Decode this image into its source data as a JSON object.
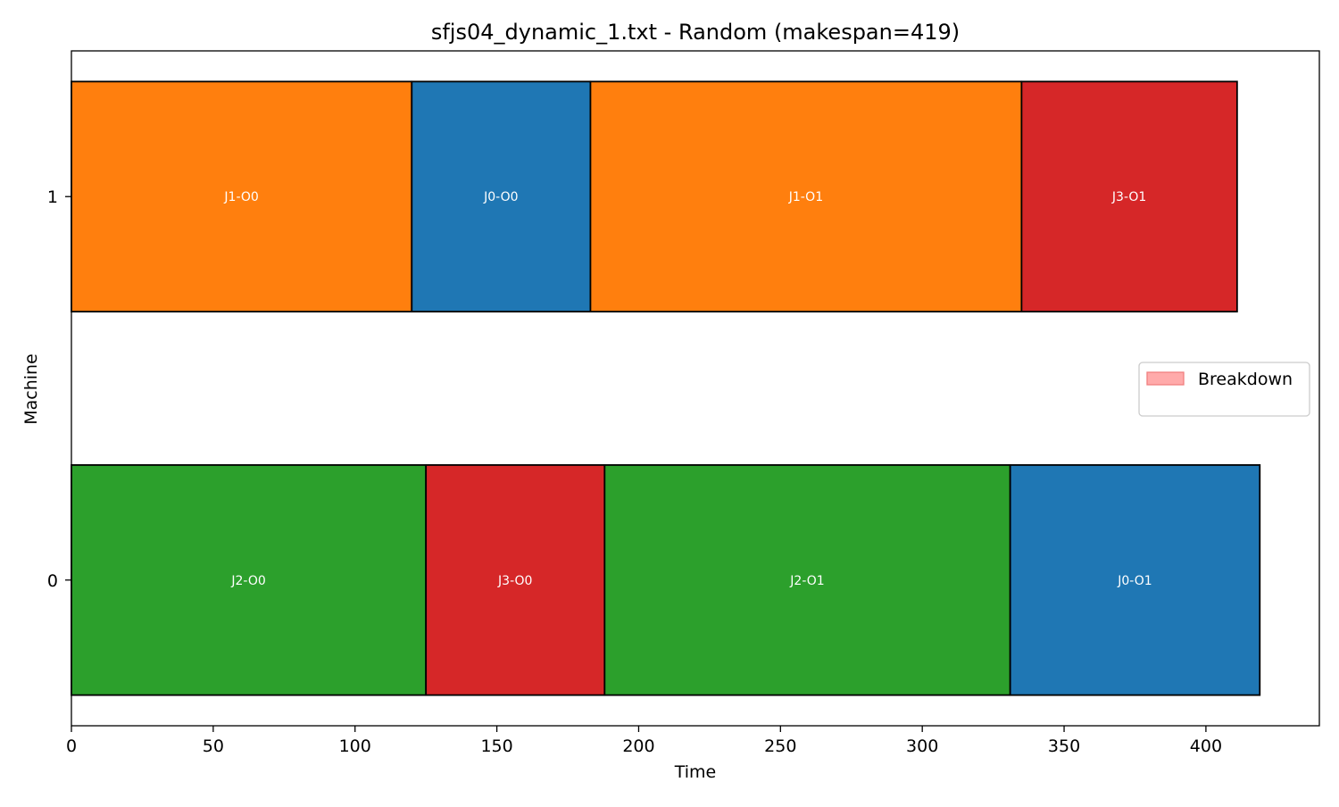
{
  "chart_data": {
    "type": "gantt",
    "title": "sfjs04_dynamic_1.txt - Random (makespan=419)",
    "xlabel": "Time",
    "ylabel": "Machine",
    "xlim": [
      0,
      440
    ],
    "ylim": [
      -0.38,
      1.38
    ],
    "xticks": [
      0,
      50,
      100,
      150,
      200,
      250,
      300,
      350,
      400
    ],
    "machines": [
      0,
      1
    ],
    "grid": false,
    "legend": {
      "placement": "center-right",
      "entries": [
        {
          "label": "Breakdown",
          "color": "#ffaaaa",
          "edge_color": "#f08080"
        }
      ]
    },
    "job_colors": {
      "J0": "#1f77b4",
      "J1": "#ff7f0e",
      "J2": "#2ca02c",
      "J3": "#d62728"
    },
    "tasks": [
      {
        "machine": 1,
        "job": "J1",
        "label": "J1-O0",
        "start": 0,
        "end": 120
      },
      {
        "machine": 1,
        "job": "J0",
        "label": "J0-O0",
        "start": 120,
        "end": 183
      },
      {
        "machine": 1,
        "job": "J1",
        "label": "J1-O1",
        "start": 183,
        "end": 335
      },
      {
        "machine": 1,
        "job": "J3",
        "label": "J3-O1",
        "start": 335,
        "end": 411
      },
      {
        "machine": 0,
        "job": "J2",
        "label": "J2-O0",
        "start": 0,
        "end": 125
      },
      {
        "machine": 0,
        "job": "J3",
        "label": "J3-O0",
        "start": 125,
        "end": 188
      },
      {
        "machine": 0,
        "job": "J2",
        "label": "J2-O1",
        "start": 188,
        "end": 331
      },
      {
        "machine": 0,
        "job": "J0",
        "label": "J0-O1",
        "start": 331,
        "end": 419
      }
    ]
  }
}
